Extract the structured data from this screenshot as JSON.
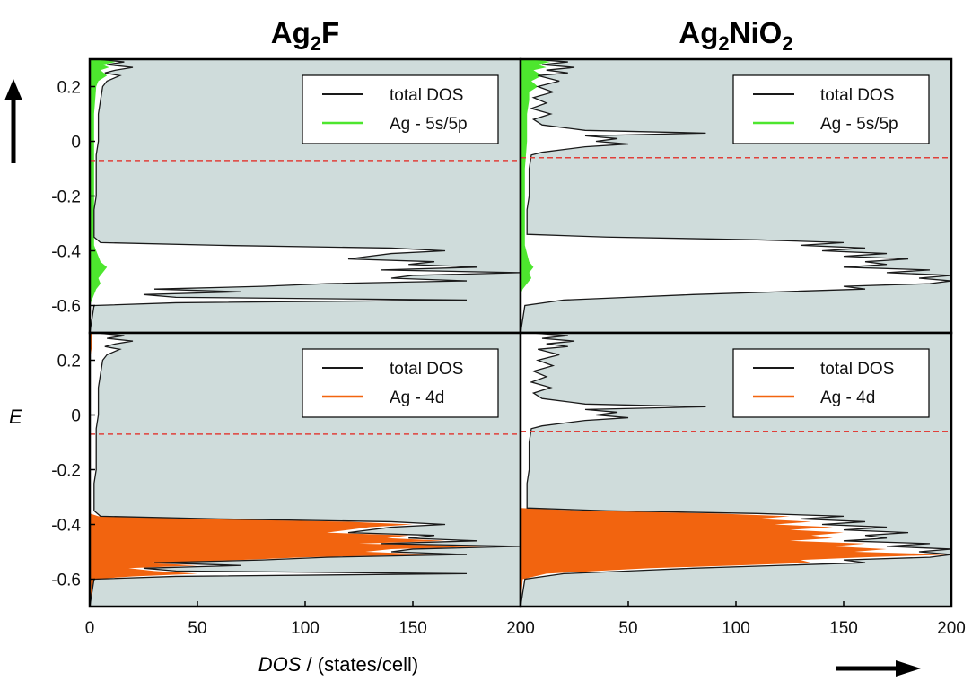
{
  "chart_data": {
    "type": "area",
    "xlabel_italic": "DOS",
    "xlabel_rest": " / (states/cell)",
    "ylabel": "E",
    "xlim": [
      0,
      200
    ],
    "ylim": [
      -0.7,
      0.3
    ],
    "x_ticks": [
      "0",
      "50",
      "100",
      "150",
      "200"
    ],
    "y_ticks": [
      "0.2",
      "0",
      "-0.2",
      "-0.4",
      "-0.6"
    ],
    "y_tick_values": [
      0.2,
      0,
      -0.2,
      -0.4,
      -0.6
    ],
    "x_tick_values": [
      0,
      50,
      100,
      150,
      200
    ],
    "colors": {
      "background": "#cfdcdb",
      "total": "#1a1a1a",
      "ag_sp": "#4de62e",
      "ag_d": "#f2640f",
      "fermi": "#e0403a"
    },
    "columns": [
      {
        "title_main": "Ag",
        "title_sub1": "2",
        "title_mid": "F",
        "title_sub2": "",
        "fermi": -0.07
      },
      {
        "title_main": "Ag",
        "title_sub1": "2",
        "title_mid": "NiO",
        "title_sub2": "2",
        "fermi": -0.06
      }
    ],
    "panels": [
      {
        "col": 0,
        "row": 0,
        "legend": [
          "total DOS",
          "Ag - 5s/5p"
        ],
        "partial": "ag_sp"
      },
      {
        "col": 1,
        "row": 0,
        "legend": [
          "total DOS",
          "Ag - 5s/5p"
        ],
        "partial": "ag_sp"
      },
      {
        "col": 0,
        "row": 1,
        "legend": [
          "total DOS",
          "Ag - 4d"
        ],
        "partial": "ag_d"
      },
      {
        "col": 1,
        "row": 1,
        "legend": [
          "total DOS",
          "Ag - 4d"
        ],
        "partial": "ag_d"
      }
    ],
    "series": {
      "total_ag2f": [
        [
          0.3,
          3
        ],
        [
          0.29,
          16
        ],
        [
          0.28,
          8
        ],
        [
          0.27,
          20
        ],
        [
          0.26,
          12
        ],
        [
          0.25,
          7
        ],
        [
          0.24,
          14
        ],
        [
          0.22,
          8
        ],
        [
          0.2,
          6
        ],
        [
          0.15,
          5
        ],
        [
          0.1,
          4
        ],
        [
          0.05,
          4
        ],
        [
          0.0,
          4
        ],
        [
          -0.05,
          3
        ],
        [
          -0.1,
          3
        ],
        [
          -0.15,
          3
        ],
        [
          -0.2,
          3
        ],
        [
          -0.25,
          2
        ],
        [
          -0.3,
          2
        ],
        [
          -0.35,
          2
        ],
        [
          -0.37,
          5
        ],
        [
          -0.38,
          60
        ],
        [
          -0.39,
          140
        ],
        [
          -0.4,
          165
        ],
        [
          -0.41,
          140
        ],
        [
          -0.43,
          120
        ],
        [
          -0.44,
          160
        ],
        [
          -0.45,
          148
        ],
        [
          -0.46,
          180
        ],
        [
          -0.47,
          135
        ],
        [
          -0.48,
          200
        ],
        [
          -0.49,
          150
        ],
        [
          -0.5,
          140
        ],
        [
          -0.51,
          175
        ],
        [
          -0.52,
          110
        ],
        [
          -0.53,
          80
        ],
        [
          -0.54,
          30
        ],
        [
          -0.55,
          70
        ],
        [
          -0.56,
          25
        ],
        [
          -0.57,
          40
        ],
        [
          -0.58,
          175
        ],
        [
          -0.59,
          40
        ],
        [
          -0.6,
          2
        ],
        [
          -0.7,
          0
        ]
      ],
      "sp_ag2f": [
        [
          0.3,
          4
        ],
        [
          0.29,
          12
        ],
        [
          0.28,
          6
        ],
        [
          0.27,
          9
        ],
        [
          0.26,
          5
        ],
        [
          0.24,
          8
        ],
        [
          0.22,
          4
        ],
        [
          0.2,
          3
        ],
        [
          0.1,
          2
        ],
        [
          0.0,
          2
        ],
        [
          -0.1,
          2
        ],
        [
          -0.2,
          2
        ],
        [
          -0.3,
          2
        ],
        [
          -0.38,
          2
        ],
        [
          -0.44,
          5
        ],
        [
          -0.46,
          8
        ],
        [
          -0.48,
          6
        ],
        [
          -0.5,
          4
        ],
        [
          -0.52,
          5
        ],
        [
          -0.54,
          3
        ],
        [
          -0.56,
          2
        ],
        [
          -0.58,
          1
        ],
        [
          -0.6,
          0
        ],
        [
          -0.7,
          0
        ]
      ],
      "d_ag2f": [
        [
          0.3,
          1
        ],
        [
          0.25,
          1
        ],
        [
          0.2,
          0
        ],
        [
          -0.36,
          0
        ],
        [
          -0.37,
          4
        ],
        [
          -0.38,
          50
        ],
        [
          -0.39,
          120
        ],
        [
          -0.4,
          150
        ],
        [
          -0.41,
          130
        ],
        [
          -0.43,
          110
        ],
        [
          -0.44,
          148
        ],
        [
          -0.45,
          138
        ],
        [
          -0.46,
          165
        ],
        [
          -0.47,
          125
        ],
        [
          -0.48,
          185
        ],
        [
          -0.49,
          140
        ],
        [
          -0.5,
          128
        ],
        [
          -0.51,
          160
        ],
        [
          -0.52,
          100
        ],
        [
          -0.53,
          70
        ],
        [
          -0.54,
          25
        ],
        [
          -0.55,
          50
        ],
        [
          -0.56,
          18
        ],
        [
          -0.57,
          30
        ],
        [
          -0.58,
          50
        ],
        [
          -0.59,
          20
        ],
        [
          -0.6,
          2
        ],
        [
          -0.7,
          0
        ]
      ],
      "total_ag2nio2": [
        [
          0.3,
          5
        ],
        [
          0.29,
          22
        ],
        [
          0.28,
          10
        ],
        [
          0.27,
          25
        ],
        [
          0.26,
          12
        ],
        [
          0.25,
          22
        ],
        [
          0.24,
          8
        ],
        [
          0.22,
          18
        ],
        [
          0.2,
          8
        ],
        [
          0.18,
          15
        ],
        [
          0.16,
          6
        ],
        [
          0.14,
          12
        ],
        [
          0.12,
          5
        ],
        [
          0.1,
          14
        ],
        [
          0.08,
          6
        ],
        [
          0.06,
          10
        ],
        [
          0.04,
          30
        ],
        [
          0.03,
          86
        ],
        [
          0.02,
          30
        ],
        [
          0.01,
          45
        ],
        [
          0.0,
          35
        ],
        [
          -0.01,
          50
        ],
        [
          -0.02,
          30
        ],
        [
          -0.03,
          20
        ],
        [
          -0.04,
          10
        ],
        [
          -0.05,
          5
        ],
        [
          -0.1,
          4
        ],
        [
          -0.15,
          4
        ],
        [
          -0.2,
          4
        ],
        [
          -0.25,
          3
        ],
        [
          -0.3,
          3
        ],
        [
          -0.34,
          3
        ],
        [
          -0.35,
          40
        ],
        [
          -0.36,
          110
        ],
        [
          -0.37,
          150
        ],
        [
          -0.38,
          130
        ],
        [
          -0.39,
          160
        ],
        [
          -0.4,
          140
        ],
        [
          -0.41,
          170
        ],
        [
          -0.42,
          150
        ],
        [
          -0.43,
          180
        ],
        [
          -0.44,
          160
        ],
        [
          -0.45,
          170
        ],
        [
          -0.46,
          150
        ],
        [
          -0.47,
          190
        ],
        [
          -0.48,
          170
        ],
        [
          -0.49,
          200
        ],
        [
          -0.5,
          185
        ],
        [
          -0.51,
          200
        ],
        [
          -0.52,
          190
        ],
        [
          -0.53,
          150
        ],
        [
          -0.54,
          160
        ],
        [
          -0.55,
          120
        ],
        [
          -0.56,
          80
        ],
        [
          -0.57,
          50
        ],
        [
          -0.58,
          20
        ],
        [
          -0.6,
          2
        ],
        [
          -0.7,
          0
        ]
      ],
      "sp_ag2nio2": [
        [
          0.3,
          6
        ],
        [
          0.29,
          14
        ],
        [
          0.28,
          8
        ],
        [
          0.27,
          12
        ],
        [
          0.26,
          6
        ],
        [
          0.24,
          10
        ],
        [
          0.22,
          5
        ],
        [
          0.2,
          8
        ],
        [
          0.18,
          4
        ],
        [
          0.15,
          4
        ],
        [
          0.1,
          3
        ],
        [
          0.05,
          3
        ],
        [
          0.0,
          3
        ],
        [
          -0.1,
          2
        ],
        [
          -0.2,
          2
        ],
        [
          -0.3,
          2
        ],
        [
          -0.38,
          2
        ],
        [
          -0.44,
          4
        ],
        [
          -0.46,
          6
        ],
        [
          -0.48,
          4
        ],
        [
          -0.5,
          5
        ],
        [
          -0.52,
          3
        ],
        [
          -0.54,
          1
        ],
        [
          -0.56,
          0
        ],
        [
          -0.7,
          0
        ]
      ],
      "d_ag2nio2": [
        [
          0.3,
          0
        ],
        [
          -0.34,
          0
        ],
        [
          -0.35,
          30
        ],
        [
          -0.36,
          90
        ],
        [
          -0.37,
          125
        ],
        [
          -0.38,
          110
        ],
        [
          -0.39,
          135
        ],
        [
          -0.4,
          118
        ],
        [
          -0.41,
          145
        ],
        [
          -0.42,
          125
        ],
        [
          -0.43,
          150
        ],
        [
          -0.44,
          135
        ],
        [
          -0.45,
          145
        ],
        [
          -0.46,
          125
        ],
        [
          -0.47,
          160
        ],
        [
          -0.48,
          145
        ],
        [
          -0.49,
          170
        ],
        [
          -0.5,
          155
        ],
        [
          -0.51,
          200
        ],
        [
          -0.52,
          160
        ],
        [
          -0.53,
          130
        ],
        [
          -0.54,
          135
        ],
        [
          -0.55,
          100
        ],
        [
          -0.56,
          60
        ],
        [
          -0.57,
          35
        ],
        [
          -0.58,
          12
        ],
        [
          -0.6,
          1
        ],
        [
          -0.7,
          0
        ]
      ]
    }
  }
}
